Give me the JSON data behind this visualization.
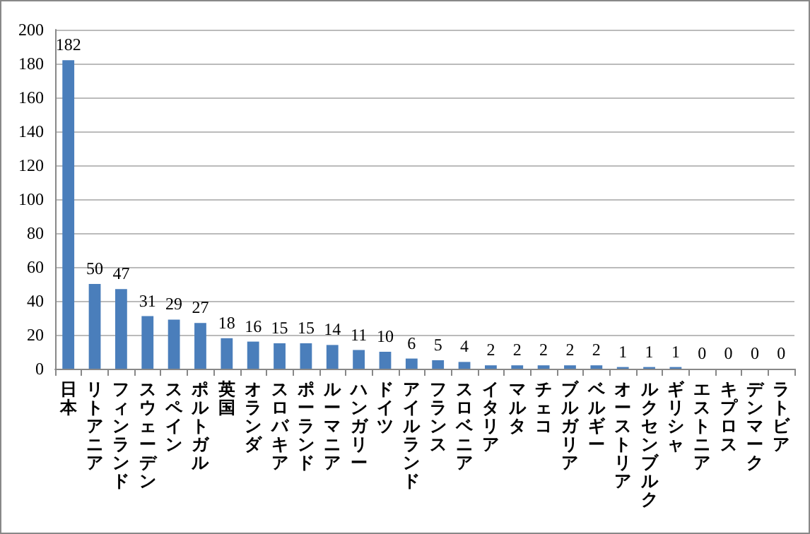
{
  "chart_data": {
    "type": "bar",
    "categories": [
      "日本",
      "リトアニア",
      "フィンランド",
      "スウェーデン",
      "スペイン",
      "ポルトガル",
      "英国",
      "オランダ",
      "スロバキア",
      "ポーランド",
      "ルーマニア",
      "ハンガリー",
      "ドイツ",
      "アイルランド",
      "フランス",
      "スロベニア",
      "イタリア",
      "マルタ",
      "チェコ",
      "ブルガリア",
      "ベルギー",
      "オーストリア",
      "ルクセンブルク",
      "ギリシャ",
      "エストニア",
      "キプロス",
      "デンマーク",
      "ラトビア"
    ],
    "values": [
      182,
      50,
      47,
      31,
      29,
      27,
      18,
      16,
      15,
      15,
      14,
      11,
      10,
      6,
      5,
      4,
      2,
      2,
      2,
      2,
      2,
      1,
      1,
      1,
      0,
      0,
      0,
      0
    ],
    "color": "#4a7ebb",
    "ylim": [
      0,
      200
    ],
    "yticks": [
      0,
      20,
      40,
      60,
      80,
      100,
      120,
      140,
      160,
      180,
      200
    ],
    "grid": "y",
    "data_labels": true
  }
}
